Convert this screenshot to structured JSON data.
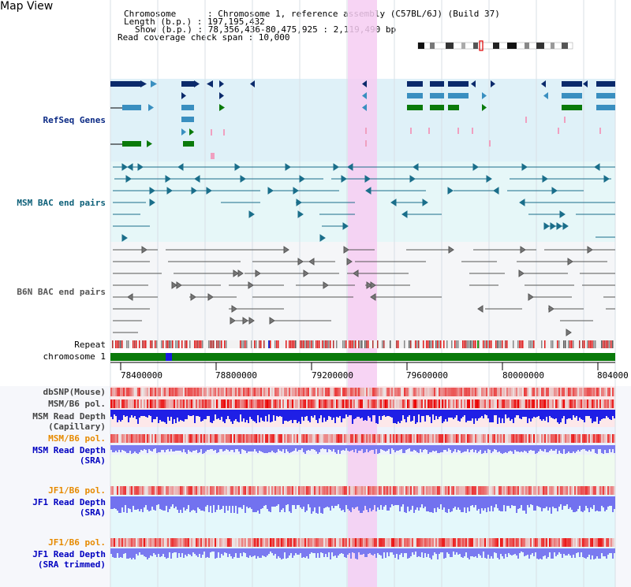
{
  "title": "Map View",
  "header": {
    "lines": [
      "Chromosome      : Chromosome 1, reference assembly (C57BL/6J) (Build 37)",
      "Length (b.p.) : 197,195,432",
      "Show (b.p.) : 78,356,436-80,475,925 : 2,119,490 bp",
      "Read coverage check span : 10,000"
    ]
  },
  "tracks": {
    "refseq": "RefSeq Genes",
    "msm_bac": "MSM BAC end pairs",
    "b6n_bac": "B6N BAC end pairs",
    "repeat": "Repeat",
    "chromosome": "chromosome 1",
    "dbsnp": "dbSNP(Mouse)",
    "msm_b6_pol": "MSM/B6 pol.",
    "msm_depth_cap_1": "MSM Read Depth",
    "msm_depth_cap_2": "(Capillary)",
    "msm_b6_pol2": "MSM/B6 pol.",
    "msm_depth_sra_1": "MSM Read Depth",
    "msm_depth_sra_2": "(SRA)",
    "jf1_pol": "JF1/B6 pol.",
    "jf1_depth_1": "JF1 Read Depth",
    "jf1_depth_2": "(SRA)",
    "jf1_pol2": "JF1/B6 pol.",
    "jf1_trim_1": "JF1 Read Depth",
    "jf1_trim_2": "(SRA trimmed)"
  },
  "axis": {
    "ticks": [
      "78400000",
      "78800000",
      "79200000",
      "79600000",
      "80000000",
      "804000"
    ]
  },
  "colors": {
    "refseq_bg": "#dff1f8",
    "bac_bg": "#e6f7f8",
    "b6n_bg": "#f4f6f8",
    "highlight": "#f6ccf2",
    "chromosome_bar": "#0a7a0a",
    "depth_blue": "#1a1aee",
    "depth_light": "#7a7af0",
    "pol_red": "#ee3030"
  }
}
